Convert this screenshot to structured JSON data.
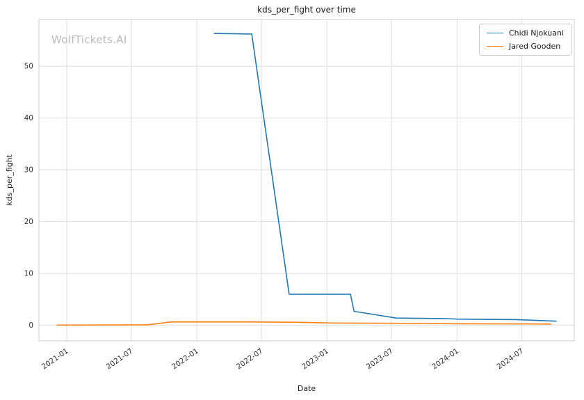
{
  "watermark": "WolfTickets.AI",
  "chart_data": {
    "type": "line",
    "title": "kds_per_fight over time",
    "xlabel": "Date",
    "ylabel": "kds_per_fight",
    "grid": true,
    "legend_position": "upper right",
    "x_ticks": [
      "2021-01",
      "2021-07",
      "2022-01",
      "2022-07",
      "2023-01",
      "2023-07",
      "2024-01",
      "2024-07"
    ],
    "y_ticks": [
      0,
      10,
      20,
      30,
      40,
      50
    ],
    "xlim": [
      "2020-10-15",
      "2024-11-25"
    ],
    "ylim": [
      -3,
      59
    ],
    "series": [
      {
        "name": "Chidi Njokuani",
        "color": "#1f77b4",
        "points": [
          [
            "2022-02-19",
            56.3
          ],
          [
            "2022-06-04",
            56.2
          ],
          [
            "2022-09-17",
            6.0
          ],
          [
            "2023-03-08",
            6.0
          ],
          [
            "2023-03-18",
            2.7
          ],
          [
            "2023-07-14",
            1.4
          ],
          [
            "2023-12-01",
            1.3
          ],
          [
            "2024-01-01",
            1.2
          ],
          [
            "2024-06-15",
            1.1
          ],
          [
            "2024-10-05",
            0.8
          ]
        ]
      },
      {
        "name": "Jared Gooden",
        "color": "#ff7f0e",
        "points": [
          [
            "2020-12-05",
            0.05
          ],
          [
            "2021-08-15",
            0.1
          ],
          [
            "2021-10-20",
            0.65
          ],
          [
            "2022-06-01",
            0.65
          ],
          [
            "2022-10-01",
            0.6
          ],
          [
            "2023-01-15",
            0.45
          ],
          [
            "2023-07-01",
            0.4
          ],
          [
            "2024-01-01",
            0.3
          ],
          [
            "2024-09-20",
            0.25
          ]
        ]
      }
    ]
  }
}
